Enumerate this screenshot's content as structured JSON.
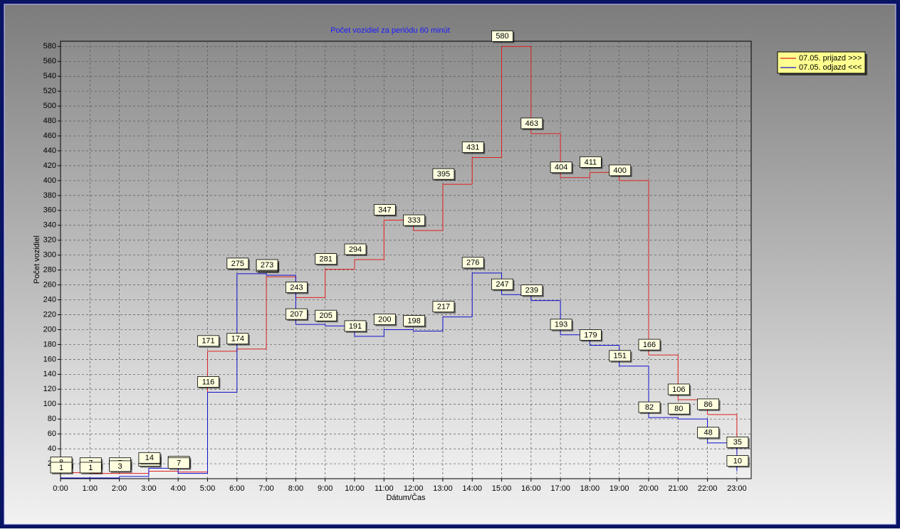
{
  "chart_data": {
    "type": "step",
    "title": "Počet vozidiel za periódu 60 minút",
    "x_label": "Dátum/Čas",
    "y_label": "Počet vozidiel",
    "categories": [
      "0:00",
      "1:00",
      "2:00",
      "3:00",
      "4:00",
      "5:00",
      "6:00",
      "7:00",
      "8:00",
      "9:00",
      "10:00",
      "11:00",
      "12:00",
      "13:00",
      "14:00",
      "15:00",
      "16:00",
      "17:00",
      "18:00",
      "19:00",
      "20:00",
      "21:00",
      "22:00",
      "23:00"
    ],
    "series": [
      {
        "name": "07.05.  prijazd >>>",
        "color": "#e02020",
        "values": [
          8,
          7,
          7,
          10,
          9,
          171,
          174,
          271,
          243,
          281,
          294,
          347,
          333,
          395,
          431,
          580,
          463,
          404,
          411,
          400,
          166,
          106,
          86,
          35
        ]
      },
      {
        "name": "07.05.  odjazd <<<",
        "color": "#1010d0",
        "values": [
          1,
          1,
          3,
          14,
          7,
          116,
          275,
          273,
          207,
          205,
          191,
          200,
          198,
          217,
          276,
          247,
          239,
          193,
          179,
          151,
          82,
          80,
          48,
          10
        ]
      }
    ],
    "ylim": [
      0,
      587
    ],
    "yticks": [
      20,
      40,
      60,
      80,
      100,
      120,
      140,
      160,
      180,
      200,
      220,
      240,
      260,
      280,
      300,
      320,
      340,
      360,
      380,
      400,
      420,
      440,
      460,
      480,
      500,
      520,
      540,
      560,
      580
    ],
    "grid": true,
    "legend": "top-right"
  }
}
